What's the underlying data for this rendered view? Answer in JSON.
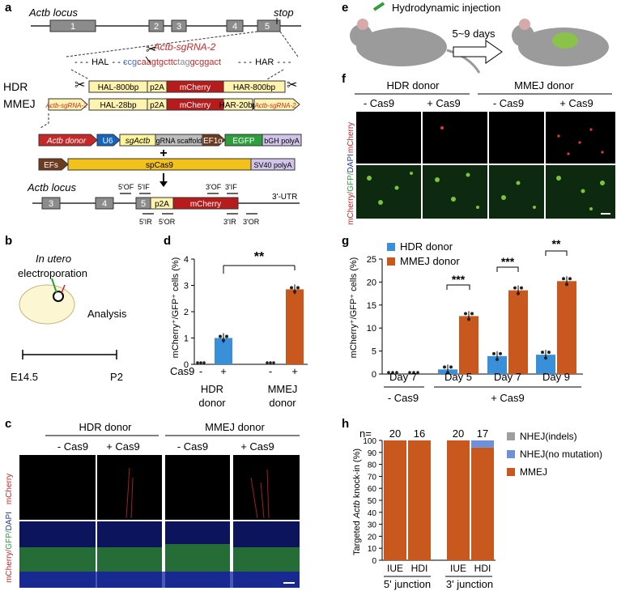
{
  "panels": {
    "a": "a",
    "b": "b",
    "c": "c",
    "d": "d",
    "e": "e",
    "f": "f",
    "g": "g",
    "h": "h"
  },
  "a": {
    "locus_title": "Actb locus",
    "stop": "stop",
    "exons": [
      "1",
      "2",
      "3",
      "4",
      "5"
    ],
    "sgrna": "Actb-sgRNA-2",
    "hal": "HAL",
    "har": "HAR",
    "seq_blue": "ccg",
    "seq_red1": "caagtgcttc",
    "seq_gray": "tag",
    "seq_red2": "gcggact",
    "hdr_label": "HDR",
    "mmej_label": "MMEJ",
    "hdr_boxes": [
      "HAL-800bp",
      "p2A",
      "mCherry",
      "HAR-800bp"
    ],
    "mmej_boxes": [
      "HAL-28bp",
      "p2A",
      "mCherry",
      "HAR-20bp"
    ],
    "mmej_flank": "Actb-sgRNA-2",
    "donor": "Actb donor",
    "u6": "U6",
    "sgactb": "sgActb",
    "scaffold": "gRNA scaffold",
    "ef1a": "EF1α",
    "egfp": "EGFP",
    "bgh": "bGH polyA",
    "plus": "+",
    "efs": "EFs",
    "spcas9": "spCas9",
    "sv40": "SV40 polyA",
    "locus2_title": "Actb locus",
    "locus2_exons": [
      "3",
      "4",
      "5"
    ],
    "p2a": "p2A",
    "mcherry": "mCherry",
    "utr": "3'-UTR",
    "primers": [
      "5'OF",
      "5'IF",
      "3'OF",
      "3'IF",
      "5'IR",
      "5'OR",
      "3'IR",
      "3'OR"
    ]
  },
  "b": {
    "title1": "In utero",
    "title2": "electroporation",
    "analysis": "Analysis",
    "t0": "E14.5",
    "t1": "P2"
  },
  "c": {
    "hdr": "HDR donor",
    "mmej": "MMEJ donor",
    "conds": [
      "- Cas9",
      "+ Cas9",
      "- Cas9",
      "+ Cas9"
    ],
    "row1": "mCherry",
    "row2a": "mCherry/",
    "row2b": "GFP/",
    "row2c": "DAPI"
  },
  "d": {
    "ylabel": "mCherry⁺/GFP⁺ cells (%)",
    "yticks": [
      "0",
      "1",
      "2",
      "3",
      "4"
    ],
    "sig": "**",
    "cas9": "Cas9",
    "minus": "-",
    "plus": "+",
    "g1a": "HDR",
    "g1b": "donor",
    "g2a": "MMEJ",
    "g2b": "donor"
  },
  "e": {
    "title": "Hydrodynamic injection",
    "time": "5~9 days"
  },
  "f": {
    "hdr": "HDR donor",
    "mmej": "MMEJ donor",
    "conds": [
      "- Cas9",
      "+ Cas9",
      "- Cas9",
      "+ Cas9"
    ],
    "row1": "mCherry",
    "row2a": "mCherry/",
    "row2b": "GFP/",
    "row2c": "DAPI"
  },
  "g": {
    "ylabel": "mCherry⁺/GFP⁺ cells (%)",
    "yticks": [
      "0",
      "5",
      "10",
      "15",
      "20",
      "25"
    ],
    "legend": [
      "HDR donor",
      "MMEJ donor"
    ],
    "days": [
      "Day 7",
      "Day 5",
      "Day 7",
      "Day 9"
    ],
    "minus": "- Cas9",
    "plus": "+ Cas9",
    "sig": [
      "***",
      "***",
      "**"
    ]
  },
  "h": {
    "n": "n=",
    "counts": [
      "20",
      "16",
      "20",
      "17"
    ],
    "ylabel_a": "Targeted ",
    "ylabel_b": "Actb",
    "ylabel_c": " knock-in (%)",
    "yticks": [
      "0",
      "10",
      "20",
      "30",
      "40",
      "50",
      "60",
      "70",
      "80",
      "90",
      "100"
    ],
    "cats": [
      "IUE",
      "HDI",
      "IUE",
      "HDI"
    ],
    "groups": [
      "5' junction",
      "3' junction"
    ],
    "legend": [
      "NHEJ(indels)",
      "NHEJ(no mutation)",
      "MMEJ"
    ]
  },
  "colors": {
    "hdr": "#3a8fd9",
    "mmej": "#c9581e",
    "nhej_indel": "#9e9e9e",
    "nhej_nomut": "#6f8fd8"
  },
  "chart_data": [
    {
      "type": "bar",
      "panel": "d",
      "categories": [
        "HDR donor -Cas9",
        "HDR donor +Cas9",
        "MMEJ donor -Cas9",
        "MMEJ donor +Cas9"
      ],
      "values": [
        0,
        1.0,
        0,
        2.85
      ],
      "ylim": [
        0,
        4
      ],
      "ylabel": "mCherry⁺/GFP⁺ cells (%)"
    },
    {
      "type": "bar",
      "panel": "g",
      "categories": [
        "Day 7 (-Cas9)",
        "Day 5",
        "Day 7",
        "Day 9"
      ],
      "series": [
        {
          "name": "HDR donor",
          "values": [
            0,
            1.0,
            3.9,
            4.2
          ]
        },
        {
          "name": "MMEJ donor",
          "values": [
            0,
            12.6,
            18.2,
            20.2
          ]
        }
      ],
      "ylim": [
        0,
        25
      ],
      "ylabel": "mCherry⁺/GFP⁺ cells (%)"
    },
    {
      "type": "bar",
      "panel": "h",
      "categories": [
        "5' junction IUE",
        "5' junction HDI",
        "3' junction IUE",
        "3' junction HDI"
      ],
      "series": [
        {
          "name": "MMEJ",
          "values": [
            100,
            100,
            100,
            94
          ]
        },
        {
          "name": "NHEJ(no mutation)",
          "values": [
            0,
            0,
            0,
            6
          ]
        },
        {
          "name": "NHEJ(indels)",
          "values": [
            0,
            0,
            0,
            0
          ]
        }
      ],
      "ylim": [
        0,
        100
      ],
      "ylabel": "Targeted Actb knock-in (%)"
    }
  ]
}
